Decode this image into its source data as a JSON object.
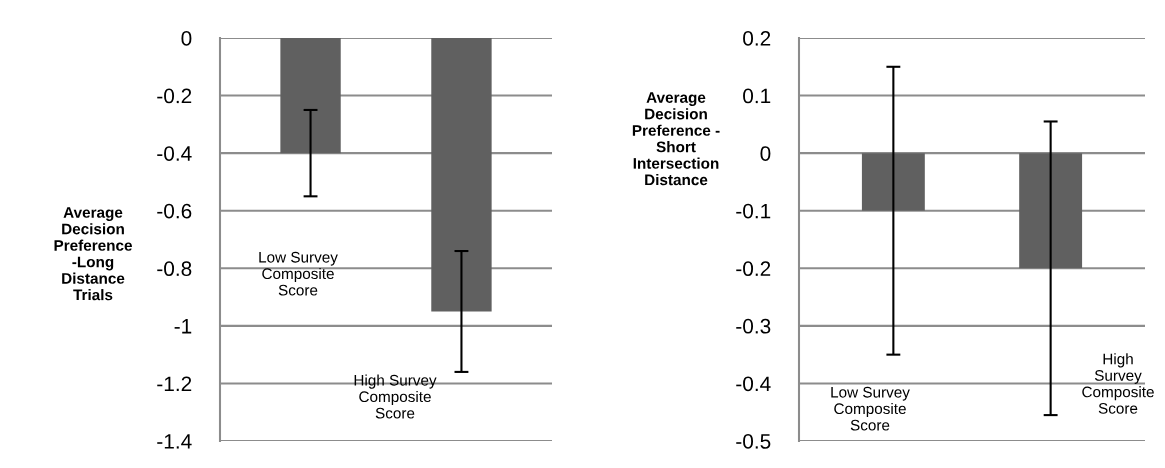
{
  "chart_data": [
    {
      "type": "bar",
      "ylabel": "Average Decision Preference -Long Distance Trials",
      "categories": [
        "Low Survey Composite Score",
        "High Survey Composite Score"
      ],
      "values": [
        -0.4,
        -0.95
      ],
      "errors": [
        0.15,
        0.21
      ],
      "color": "#606060",
      "ylim": [
        -1.4,
        0
      ],
      "yticks": [
        0,
        -0.2,
        -0.4,
        -0.6,
        -0.8,
        -1,
        -1.2,
        -1.4
      ],
      "grid": "y"
    },
    {
      "type": "bar",
      "ylabel": "Average Decision Preference - Short Intersection Distance",
      "categories": [
        "Low Survey Composite Score",
        "High Survey Composite Score"
      ],
      "values": [
        -0.1,
        -0.2
      ],
      "errors": [
        0.25,
        0.255
      ],
      "color": "#606060",
      "ylim": [
        -0.5,
        0.2
      ],
      "yticks": [
        -0.5,
        -0.4,
        -0.3,
        -0.2,
        -0.1,
        0,
        0.1,
        0.2
      ],
      "grid": "y"
    }
  ]
}
